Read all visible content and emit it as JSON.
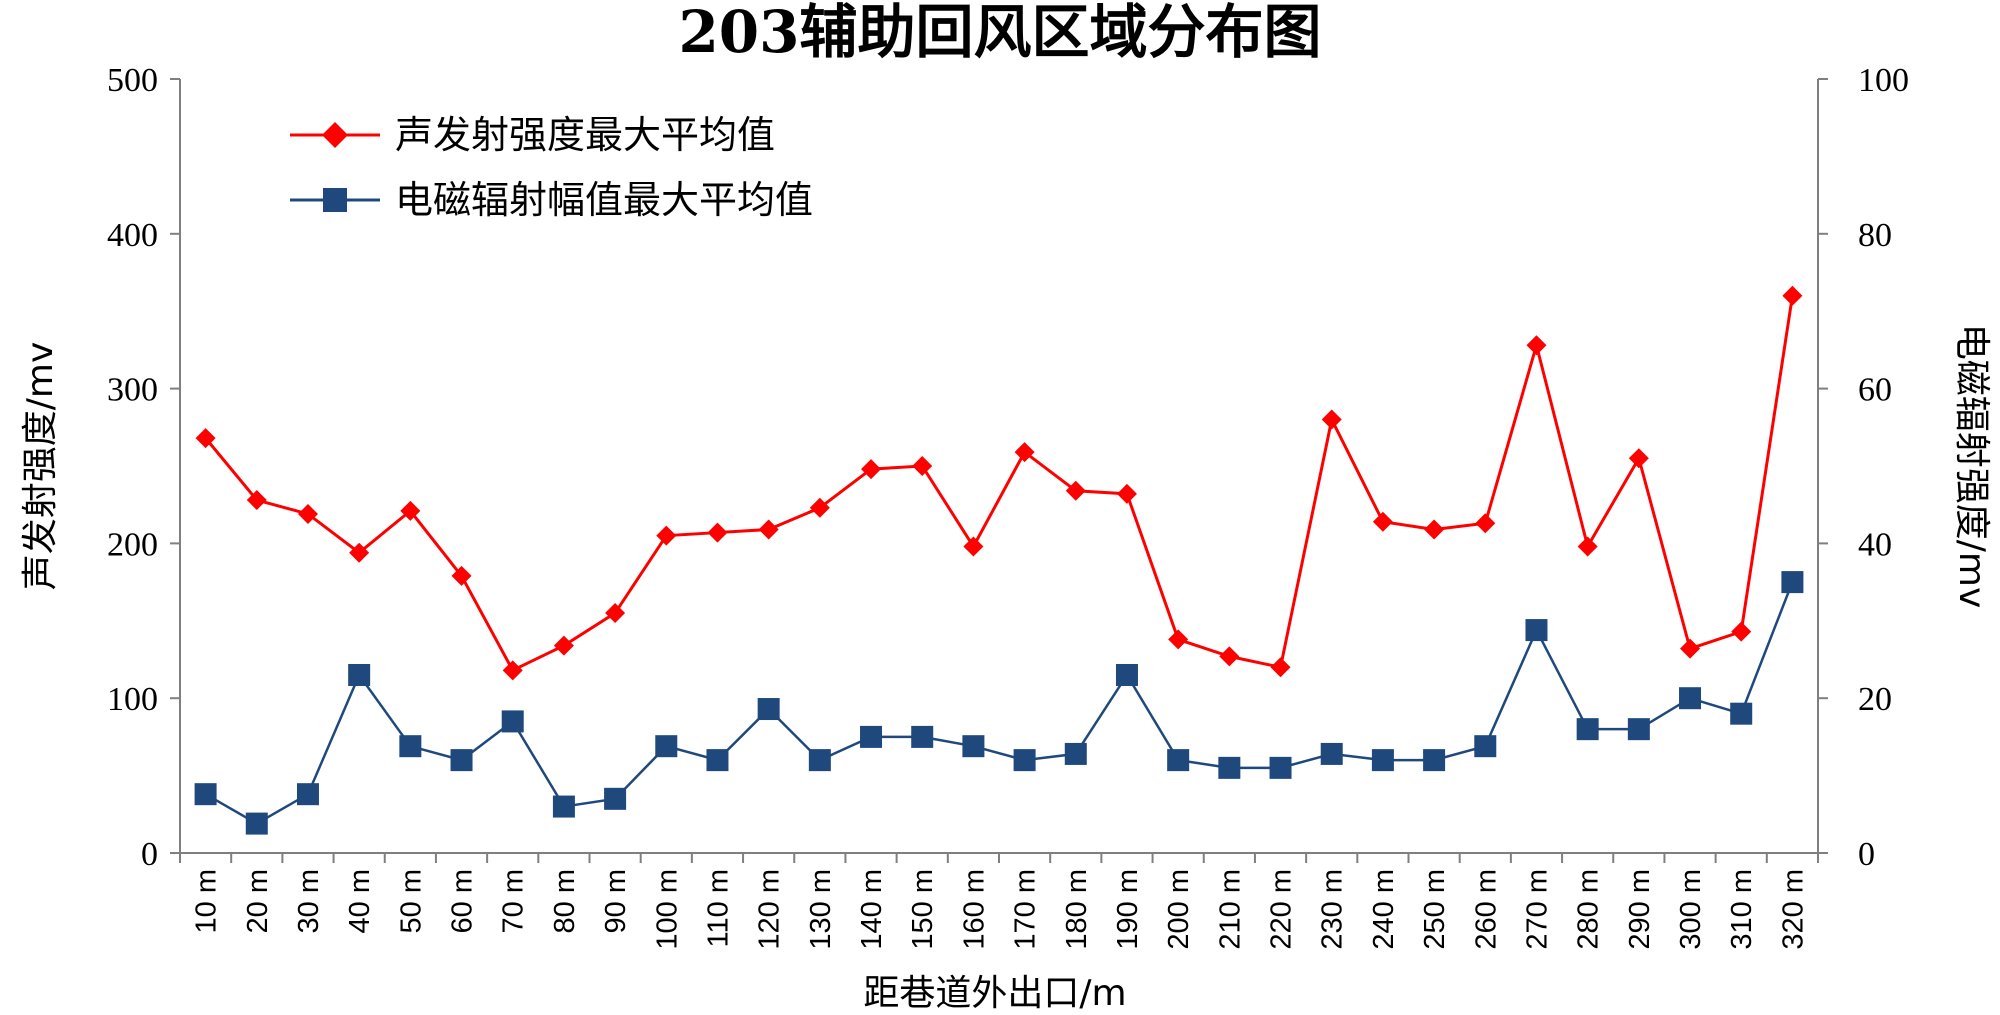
{
  "chart_data": {
    "type": "line",
    "title": "203辅助回风区域分布图",
    "xlabel": "距巷道外出口/m",
    "ylabel_left": "声发射强度/mv",
    "ylabel_right": "电磁辐射强度/mv",
    "categories": [
      "10 m",
      "20 m",
      "30 m",
      "40 m",
      "50 m",
      "60 m",
      "70 m",
      "80 m",
      "90 m",
      "100 m",
      "110 m",
      "120 m",
      "130 m",
      "140 m",
      "150 m",
      "160 m",
      "170 m",
      "180 m",
      "190 m",
      "200 m",
      "210 m",
      "220 m",
      "230 m",
      "240 m",
      "250 m",
      "260 m",
      "270 m",
      "280 m",
      "290 m",
      "300 m",
      "310 m",
      "320 m"
    ],
    "ylim_left": [
      0,
      500
    ],
    "yticks_left": [
      "0",
      "100",
      "200",
      "300",
      "400",
      "500"
    ],
    "ylim_right": [
      0,
      100
    ],
    "yticks_right": [
      "0",
      "20",
      "40",
      "60",
      "80",
      "100"
    ],
    "grid": false,
    "legend_position": "top-left",
    "series": [
      {
        "name": "声发射强度最大平均值",
        "axis": "left",
        "color": "#ff0000",
        "marker": "diamond",
        "values": [
          268,
          228,
          219,
          194,
          221,
          179,
          118,
          134,
          155,
          205,
          207,
          209,
          223,
          248,
          250,
          198,
          259,
          234,
          232,
          138,
          127,
          120,
          280,
          214,
          209,
          213,
          328,
          198,
          255,
          132,
          143,
          360
        ]
      },
      {
        "name": "电磁辐射幅值最大平均值",
        "axis": "right",
        "color": "#1f497d",
        "marker": "square",
        "values": [
          7.6,
          3.8,
          7.6,
          23,
          13.8,
          12,
          17,
          6,
          7,
          13.8,
          12,
          18.6,
          12,
          15,
          15,
          13.8,
          12,
          12.8,
          23,
          12,
          11,
          11,
          12.8,
          12,
          12,
          13.8,
          28.8,
          16,
          16,
          20,
          18,
          35
        ]
      }
    ]
  }
}
